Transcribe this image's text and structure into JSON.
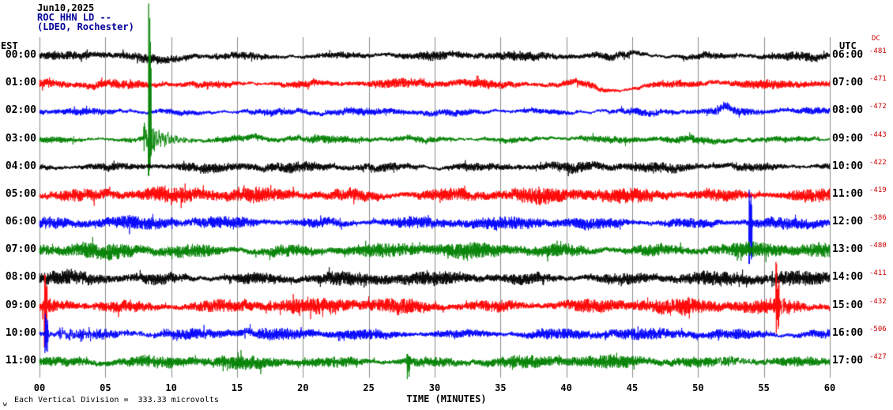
{
  "header": {
    "date": "Jun10,2025",
    "station": "ROC HHN LD --",
    "location": "(LDEO, Rochester)"
  },
  "axes": {
    "left_label": "EST",
    "right_label": "UTC",
    "dc_label": "DC",
    "x_label": "TIME (MINUTES)"
  },
  "footer": {
    "scale_note": "Each Vertical Division =  333.33 microvolts",
    "corner_mark": "w"
  },
  "chart_data": {
    "type": "line",
    "subtype": "seismogram-helicorder",
    "station": "ROC HHN LD",
    "network_note": "(LDEO, Rochester)",
    "date": "Jun10,2025",
    "x_axis": {
      "label": "TIME (MINUTES)",
      "min": 0,
      "max": 60,
      "tick_interval_minutes": 5,
      "ticks": [
        "00",
        "05",
        "10",
        "15",
        "20",
        "25",
        "30",
        "35",
        "40",
        "45",
        "50",
        "55",
        "60"
      ]
    },
    "y_axis": {
      "microvolts_per_division": 333.33,
      "note": "Each Vertical Division = 333.33 microvolts"
    },
    "rows": [
      {
        "est": "00:00",
        "utc": "06:00",
        "dc": -481,
        "color": "#000000",
        "amplitude": 6
      },
      {
        "est": "01:00",
        "utc": "07:00",
        "dc": -471,
        "color": "#ff0000",
        "amplitude": 6
      },
      {
        "est": "02:00",
        "utc": "08:00",
        "dc": -472,
        "color": "#0000ff",
        "amplitude": 5
      },
      {
        "est": "03:00",
        "utc": "09:00",
        "dc": -443,
        "color": "#008000",
        "amplitude": 5
      },
      {
        "est": "04:00",
        "utc": "10:00",
        "dc": -422,
        "color": "#000000",
        "amplitude": 7
      },
      {
        "est": "05:00",
        "utc": "11:00",
        "dc": -419,
        "color": "#ff0000",
        "amplitude": 11
      },
      {
        "est": "06:00",
        "utc": "12:00",
        "dc": -386,
        "color": "#0000ff",
        "amplitude": 9
      },
      {
        "est": "07:00",
        "utc": "13:00",
        "dc": -480,
        "color": "#008000",
        "amplitude": 11
      },
      {
        "est": "08:00",
        "utc": "14:00",
        "dc": -411,
        "color": "#000000",
        "amplitude": 10
      },
      {
        "est": "09:00",
        "utc": "15:00",
        "dc": -432,
        "color": "#ff0000",
        "amplitude": 11
      },
      {
        "est": "10:00",
        "utc": "16:00",
        "dc": -506,
        "color": "#0000ff",
        "amplitude": 8
      },
      {
        "est": "11:00",
        "utc": "17:00",
        "dc": -427,
        "color": "#008000",
        "amplitude": 9
      }
    ],
    "events": [
      {
        "row": 0,
        "m": 7.5,
        "dur": 4,
        "bias": -5
      },
      {
        "row": 0,
        "m": 43.5,
        "dur": 3,
        "bias": 4
      },
      {
        "row": 1,
        "m": 41.5,
        "dur": 4.5,
        "bias": -8
      },
      {
        "row": 2,
        "m": 51.3,
        "dur": 1.6,
        "bias": 5,
        "amp": 3
      },
      {
        "row": 3,
        "m": 7.9,
        "dur": 0.5,
        "amp": 28
      },
      {
        "row": 3,
        "m": 8.25,
        "dur": 3.6,
        "up": 172,
        "down": 46,
        "amp": 20
      },
      {
        "row": 6,
        "m": 53.85,
        "dur": 0.6,
        "up": 42,
        "down": 52,
        "amp": 8
      },
      {
        "row": 8,
        "m": 55.3,
        "dur": 2.6,
        "amp": 8
      },
      {
        "row": 9,
        "m": 0.35,
        "dur": 0.6,
        "up": 40,
        "down": 52,
        "amp": 8
      },
      {
        "row": 9,
        "m": 55.9,
        "dur": 1.8,
        "up": 56,
        "down": 34,
        "amp": 12
      },
      {
        "row": 10,
        "m": 0.4,
        "dur": 0.8,
        "up": 26,
        "down": 24,
        "amp": 8
      },
      {
        "row": 10,
        "m": 1.5,
        "dur": 11,
        "amp": 6
      },
      {
        "row": 11,
        "m": 27.9,
        "dur": 0.35,
        "up": 10,
        "down": 22,
        "amp": 4
      },
      {
        "row": 11,
        "m": 51.5,
        "dur": 6,
        "amp": 6
      }
    ]
  },
  "colors": {
    "background": "#ffffff",
    "grid": "#8c8c8c",
    "dc_text": "#cc0000",
    "header_station": "#000099"
  }
}
